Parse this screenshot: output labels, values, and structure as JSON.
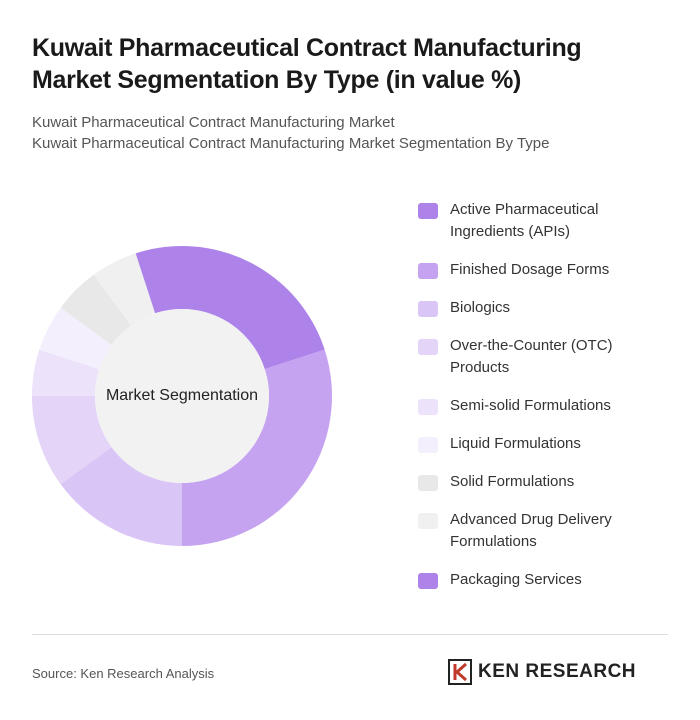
{
  "header": {
    "title": "Kuwait Pharmaceutical Contract Manufacturing Market Segmentation By Type (in value %)",
    "subtitle_1": "Kuwait Pharmaceutical Contract Manufacturing Market",
    "subtitle_2": "Kuwait Pharmaceutical Contract Manufacturing Market Segmentation By Type"
  },
  "chart_data": {
    "type": "donut",
    "center_label": "Market Segmentation",
    "categories": [
      "Active Pharmaceutical Ingredients (APIs)",
      "Finished Dosage Forms",
      "Biologics",
      "Over-the-Counter (OTC) Products",
      "Semi-solid Formulations",
      "Liquid Formulations",
      "Solid Formulations",
      "Advanced Drug Delivery Formulations",
      "Packaging Services"
    ],
    "values": [
      20,
      30,
      15,
      10,
      5,
      5,
      5,
      5,
      5
    ],
    "colors": [
      "#ad83ea",
      "#c6a3f0",
      "#dac6f6",
      "#e3d4f8",
      "#ece2fa",
      "#f4effc",
      "#e8e8e8",
      "#f0f0f0",
      "#ad83ea"
    ]
  },
  "footer": {
    "source": "Source: Ken Research Analysis",
    "logo": "KEN RESEARCH"
  }
}
